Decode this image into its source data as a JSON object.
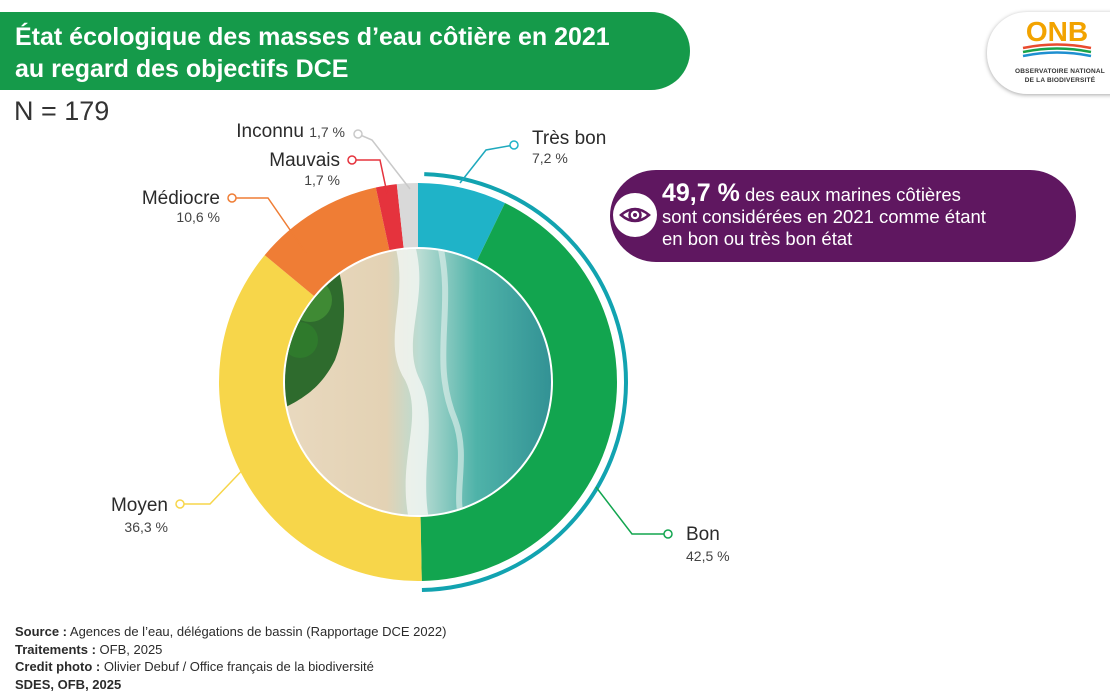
{
  "title": {
    "line1": "État écologique des masses d’eau côtière en 2021",
    "line2": "au regard des objectifs DCE"
  },
  "logo": {
    "text": "ONB",
    "line1": "OBSERVATOIRE NATIONAL",
    "line2": "DE LA BIODIVERSITÉ"
  },
  "n_label": "N = 179",
  "callout": {
    "highlight": "49,7 %",
    "text_line1": " des eaux marines côtières",
    "text_line2": "sont considérées en 2021 comme étant",
    "text_line3": "en bon ou très bon état",
    "icon": "eye-icon"
  },
  "footer": {
    "source_label": "Source :",
    "source_text": " Agences de l’eau, délégations de bassin (Rapportage DCE 2022)",
    "treatments_label": "Traitements :",
    "treatments_text": " OFB, 2025",
    "photo_label": "Credit photo :",
    "photo_text": " Olivier Debuf / Office français de la biodiversité",
    "sdes": "SDES, OFB, 2025"
  },
  "colors": {
    "title_bg": "#159a4a",
    "callout_bg": "#5f1760",
    "tres_bon": "#1fb3c8",
    "bon": "#12a54f",
    "moyen": "#f7d64a",
    "mediocre": "#ef7d35",
    "mauvais": "#e5333d",
    "inconnu": "#d9d9d9"
  },
  "chart_data": {
    "type": "donut",
    "title": "",
    "slices": [
      {
        "key": "tres_bon",
        "label": "Très bon",
        "value": 7.2,
        "value_label": "7,2 %",
        "color": "#1fb3c8"
      },
      {
        "key": "bon",
        "label": "Bon",
        "value": 42.5,
        "value_label": "42,5 %",
        "color": "#12a54f"
      },
      {
        "key": "moyen",
        "label": "Moyen",
        "value": 36.3,
        "value_label": "36,3 %",
        "color": "#f7d64a"
      },
      {
        "key": "mediocre",
        "label": "Médiocre",
        "value": 10.6,
        "value_label": "10,6 %",
        "color": "#ef7d35"
      },
      {
        "key": "mauvais",
        "label": "Mauvais",
        "value": 1.7,
        "value_label": "1,7 %",
        "color": "#e5333d"
      },
      {
        "key": "inconnu",
        "label": "Inconnu",
        "value": 1.7,
        "value_label": "1,7 %",
        "color": "#d9d9d9"
      }
    ],
    "highlight_group": {
      "slices": [
        "tres_bon",
        "bon"
      ],
      "value": 49.7
    }
  }
}
